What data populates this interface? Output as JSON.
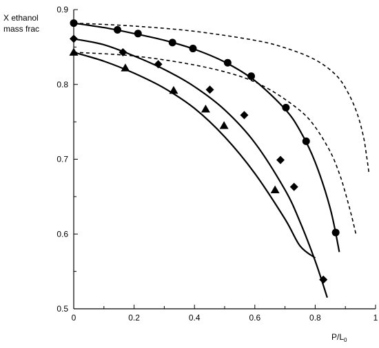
{
  "chart_data": {
    "type": "scatter",
    "ylabel_line1": "X ethanol",
    "ylabel_line2": "mass frac",
    "xlabel_main": "P/L",
    "xlabel_sub": "0",
    "xlim": [
      0,
      1
    ],
    "ylim": [
      0.5,
      0.9
    ],
    "xticks": [
      0,
      0.2,
      0.4,
      0.6,
      0.8,
      1
    ],
    "xtick_labels": [
      "0",
      "0.2",
      "0.4",
      "0.6",
      "0.8",
      "1"
    ],
    "yticks": [
      0.5,
      0.6,
      0.7,
      0.8,
      0.9
    ],
    "ytick_labels": [
      "0.5",
      "0.6",
      "0.7",
      "0.8",
      "0.9"
    ],
    "grid": false,
    "series": [
      {
        "marker": "circle",
        "points": [
          [
            0,
            0.882
          ],
          [
            0.145,
            0.873
          ],
          [
            0.213,
            0.868
          ],
          [
            0.327,
            0.856
          ],
          [
            0.395,
            0.848
          ],
          [
            0.51,
            0.829
          ],
          [
            0.588,
            0.811
          ],
          [
            0.703,
            0.769
          ],
          [
            0.77,
            0.724
          ],
          [
            0.868,
            0.602
          ]
        ],
        "fit": [
          [
            0,
            0.882
          ],
          [
            0.1,
            0.876
          ],
          [
            0.2,
            0.868
          ],
          [
            0.3,
            0.859
          ],
          [
            0.4,
            0.847
          ],
          [
            0.5,
            0.83
          ],
          [
            0.6,
            0.805
          ],
          [
            0.7,
            0.767
          ],
          [
            0.75,
            0.738
          ],
          [
            0.8,
            0.696
          ],
          [
            0.85,
            0.634
          ],
          [
            0.88,
            0.576
          ]
        ]
      },
      {
        "marker": "diamond",
        "points": [
          [
            0,
            0.861
          ],
          [
            0.163,
            0.843
          ],
          [
            0.28,
            0.827
          ],
          [
            0.451,
            0.793
          ],
          [
            0.565,
            0.759
          ],
          [
            0.685,
            0.699
          ],
          [
            0.73,
            0.663
          ],
          [
            0.827,
            0.539
          ]
        ],
        "fit": [
          [
            0,
            0.861
          ],
          [
            0.1,
            0.853
          ],
          [
            0.2,
            0.838
          ],
          [
            0.3,
            0.82
          ],
          [
            0.4,
            0.797
          ],
          [
            0.5,
            0.766
          ],
          [
            0.6,
            0.722
          ],
          [
            0.7,
            0.659
          ],
          [
            0.75,
            0.616
          ],
          [
            0.8,
            0.564
          ],
          [
            0.84,
            0.515
          ]
        ]
      },
      {
        "marker": "triangle",
        "points": [
          [
            0,
            0.843
          ],
          [
            0.171,
            0.822
          ],
          [
            0.331,
            0.792
          ],
          [
            0.437,
            0.767
          ],
          [
            0.498,
            0.745
          ],
          [
            0.667,
            0.659
          ]
        ],
        "fit": [
          [
            0,
            0.843
          ],
          [
            0.1,
            0.831
          ],
          [
            0.2,
            0.815
          ],
          [
            0.3,
            0.795
          ],
          [
            0.4,
            0.768
          ],
          [
            0.5,
            0.73
          ],
          [
            0.6,
            0.681
          ],
          [
            0.7,
            0.62
          ],
          [
            0.75,
            0.584
          ],
          [
            0.8,
            0.568
          ]
        ]
      },
      {
        "marker": "none",
        "dashed": true,
        "fit": [
          [
            0,
            0.882
          ],
          [
            0.2,
            0.878
          ],
          [
            0.4,
            0.871
          ],
          [
            0.6,
            0.859
          ],
          [
            0.7,
            0.849
          ],
          [
            0.8,
            0.833
          ],
          [
            0.87,
            0.812
          ],
          [
            0.91,
            0.788
          ],
          [
            0.94,
            0.76
          ],
          [
            0.96,
            0.73
          ],
          [
            0.97,
            0.705
          ],
          [
            0.978,
            0.682
          ]
        ]
      },
      {
        "marker": "none",
        "dashed": true,
        "fit": [
          [
            0,
            0.843
          ],
          [
            0.2,
            0.838
          ],
          [
            0.4,
            0.826
          ],
          [
            0.55,
            0.811
          ],
          [
            0.65,
            0.793
          ],
          [
            0.75,
            0.765
          ],
          [
            0.8,
            0.743
          ],
          [
            0.85,
            0.71
          ],
          [
            0.88,
            0.681
          ],
          [
            0.9,
            0.655
          ],
          [
            0.92,
            0.625
          ],
          [
            0.935,
            0.6
          ]
        ]
      }
    ]
  }
}
